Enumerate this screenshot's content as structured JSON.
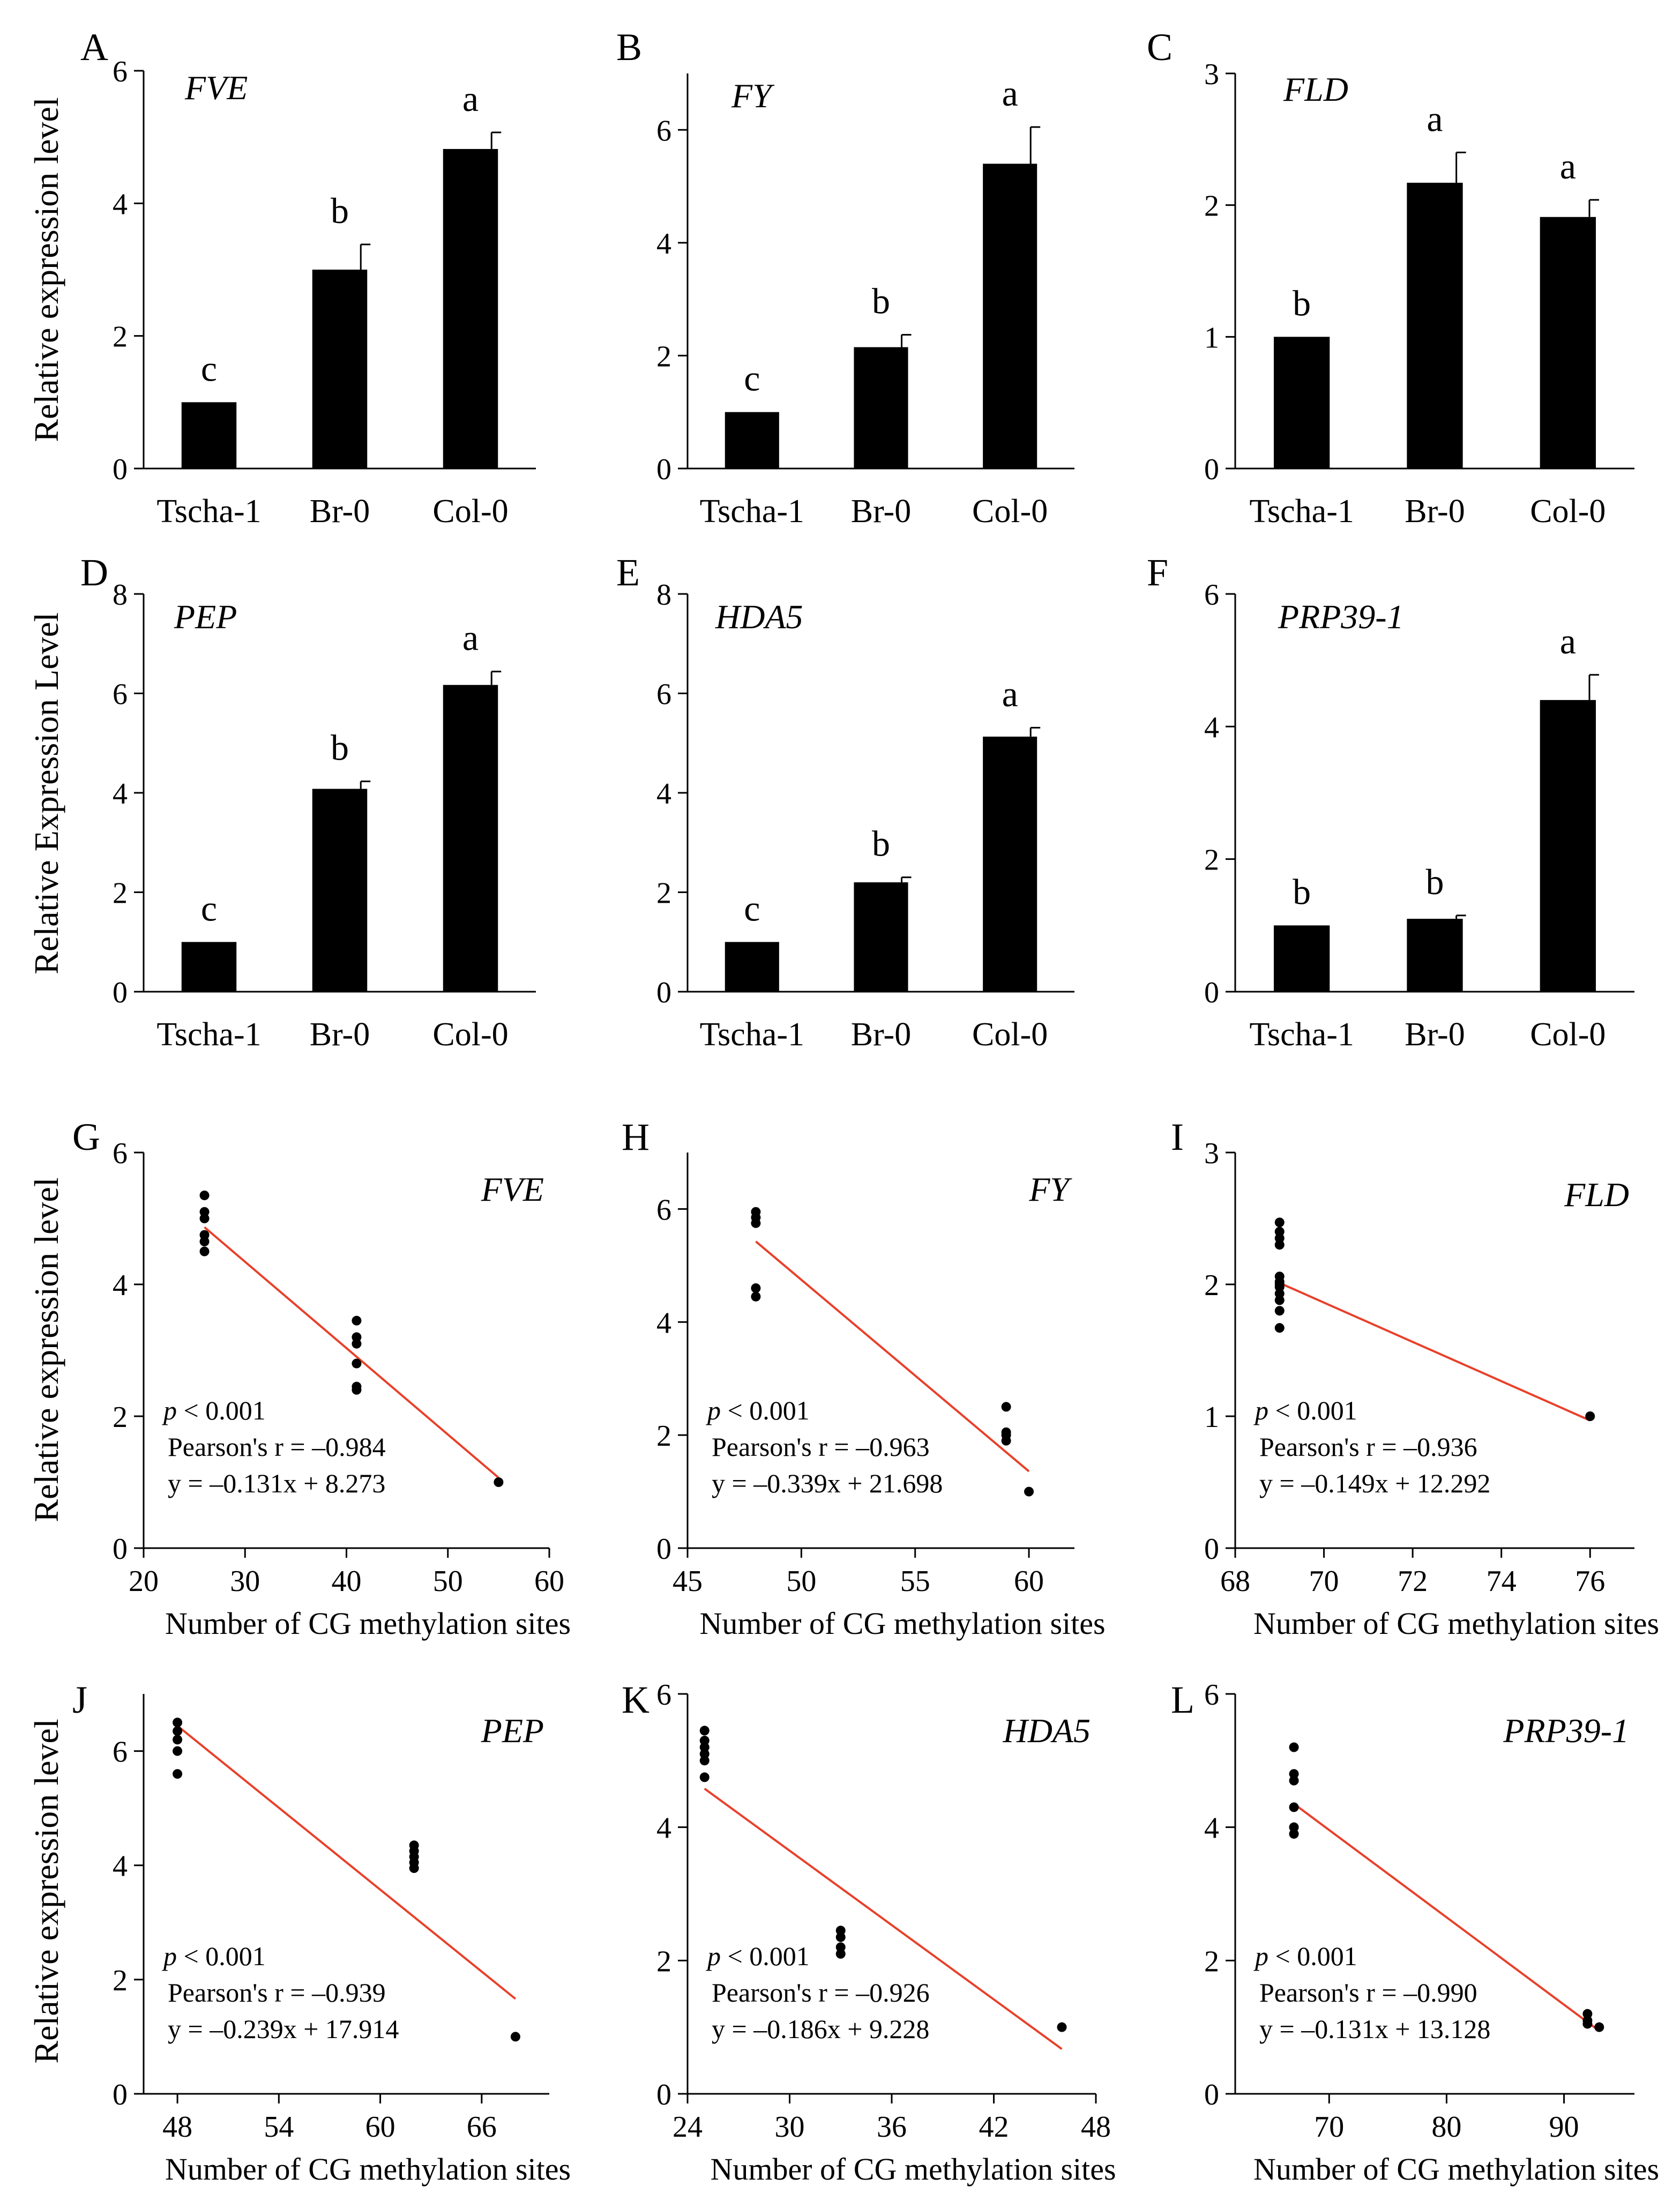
{
  "colors": {
    "bar": "#000000",
    "point": "#000000",
    "fit_line": "#e8402a",
    "axis": "#000000"
  },
  "x_categories": [
    "Tscha-1",
    "Br-0",
    "Col-0"
  ],
  "chart_data": [
    {
      "panel": "A",
      "type": "bar",
      "title": "FVE",
      "ylabel": "Relative expression level",
      "ylim": [
        0,
        6
      ],
      "yticks": [
        0,
        2,
        4,
        6
      ],
      "categories": [
        "Tscha-1",
        "Br-0",
        "Col-0"
      ],
      "values": [
        1.0,
        3.0,
        4.82
      ],
      "errors": [
        0,
        0.38,
        0.25
      ],
      "letters": [
        "c",
        "b",
        "a"
      ]
    },
    {
      "panel": "B",
      "type": "bar",
      "title": "FY",
      "ylabel": "",
      "ylim": [
        0,
        7
      ],
      "yticks": [
        0,
        2,
        4,
        6
      ],
      "categories": [
        "Tscha-1",
        "Br-0",
        "Col-0"
      ],
      "values": [
        1.0,
        2.15,
        5.4
      ],
      "errors": [
        0,
        0.22,
        0.65
      ],
      "letters": [
        "c",
        "b",
        "a"
      ]
    },
    {
      "panel": "C",
      "type": "bar",
      "title": "FLD",
      "ylabel": "",
      "ylim": [
        0,
        3
      ],
      "yticks": [
        0,
        1,
        2,
        3
      ],
      "categories": [
        "Tscha-1",
        "Br-0",
        "Col-0"
      ],
      "values": [
        1.0,
        2.17,
        1.91
      ],
      "errors": [
        0,
        0.23,
        0.13
      ],
      "letters": [
        "b",
        "a",
        "a"
      ]
    },
    {
      "panel": "D",
      "type": "bar",
      "title": "PEP",
      "ylabel": "Relative Expression Level",
      "ylim": [
        0,
        8
      ],
      "yticks": [
        0,
        2,
        4,
        6,
        8
      ],
      "categories": [
        "Tscha-1",
        "Br-0",
        "Col-0"
      ],
      "values": [
        1.0,
        4.08,
        6.17
      ],
      "errors": [
        0,
        0.15,
        0.27
      ],
      "letters": [
        "c",
        "b",
        "a"
      ]
    },
    {
      "panel": "E",
      "type": "bar",
      "title": "HDA5",
      "ylabel": "",
      "ylim": [
        0,
        8
      ],
      "yticks": [
        0,
        2,
        4,
        6,
        8
      ],
      "categories": [
        "Tscha-1",
        "Br-0",
        "Col-0"
      ],
      "values": [
        1.0,
        2.2,
        5.13
      ],
      "errors": [
        0,
        0.1,
        0.18
      ],
      "letters": [
        "c",
        "b",
        "a"
      ]
    },
    {
      "panel": "F",
      "type": "bar",
      "title": "PRP39-1",
      "ylabel": "",
      "ylim": [
        0,
        6
      ],
      "yticks": [
        0,
        2,
        4,
        6
      ],
      "categories": [
        "Tscha-1",
        "Br-0",
        "Col-0"
      ],
      "values": [
        1.0,
        1.1,
        4.4
      ],
      "errors": [
        0,
        0.05,
        0.38
      ],
      "letters": [
        "b",
        "b",
        "a"
      ]
    },
    {
      "panel": "G",
      "type": "scatter",
      "title": "FVE",
      "xlabel": "Number of CG methylation sites",
      "ylabel": "Relative expression level",
      "xlim": [
        20,
        60
      ],
      "xticks": [
        20,
        30,
        40,
        50,
        60
      ],
      "ylim": [
        0,
        6
      ],
      "yticks": [
        0,
        2,
        4,
        6
      ],
      "x": [
        26,
        26,
        26,
        26,
        26,
        26,
        41,
        41,
        41,
        41,
        41,
        41,
        55
      ],
      "y": [
        4.5,
        4.65,
        4.75,
        5.0,
        5.1,
        5.35,
        2.4,
        2.45,
        2.8,
        3.1,
        3.2,
        3.45,
        1.0
      ],
      "fit": {
        "slope": -0.131,
        "intercept": 8.273,
        "x_range": [
          26,
          55
        ]
      },
      "stats": {
        "p_symbol": "p",
        "p_rest": " < 0.001",
        "pearson": "Pearson's r = –0.984",
        "equation": "y = –0.131x + 8.273"
      }
    },
    {
      "panel": "H",
      "type": "scatter",
      "title": "FY",
      "xlabel": "Number of CG methylation sites",
      "ylabel": "",
      "xlim": [
        45,
        62
      ],
      "xticks": [
        45,
        50,
        55,
        60
      ],
      "ylim": [
        0,
        7
      ],
      "yticks": [
        0,
        2,
        4,
        6
      ],
      "x": [
        48,
        48,
        48,
        48,
        48,
        59,
        59,
        59,
        59,
        60
      ],
      "y": [
        4.45,
        4.6,
        5.75,
        5.85,
        5.95,
        1.9,
        2.0,
        2.05,
        2.5,
        1.0
      ],
      "fit": {
        "slope": -0.339,
        "intercept": 21.698,
        "x_range": [
          48,
          60
        ]
      },
      "stats": {
        "p_symbol": "p",
        "p_rest": " < 0.001",
        "pearson": "Pearson's r = –0.963",
        "equation": "y = –0.339x + 21.698"
      }
    },
    {
      "panel": "I",
      "type": "scatter",
      "title": "FLD",
      "xlabel": "Number of CG methylation sites",
      "ylabel": "",
      "xlim": [
        68,
        77
      ],
      "xticks": [
        68,
        70,
        72,
        74,
        76
      ],
      "ylim": [
        0,
        3
      ],
      "yticks": [
        0,
        1,
        2,
        3
      ],
      "x": [
        69,
        69,
        69,
        69,
        69,
        69,
        69,
        69,
        69,
        69,
        69,
        69,
        76
      ],
      "y": [
        1.67,
        1.8,
        1.88,
        1.93,
        1.98,
        2.02,
        2.06,
        2.3,
        2.35,
        2.4,
        2.47,
        2.0,
        1.0
      ],
      "fit": {
        "slope": -0.149,
        "intercept": 12.292,
        "x_range": [
          69,
          76
        ]
      },
      "stats": {
        "p_symbol": "p",
        "p_rest": " < 0.001",
        "pearson": "Pearson's r = –0.936",
        "equation": "y = –0.149x + 12.292"
      }
    },
    {
      "panel": "J",
      "type": "scatter",
      "title": "PEP",
      "xlabel": "Number of CG methylation sites",
      "ylabel": "Relative expression level",
      "xlim": [
        46,
        70
      ],
      "xticks": [
        48,
        54,
        60,
        66
      ],
      "ylim": [
        0,
        7
      ],
      "yticks": [
        0,
        2,
        4,
        6
      ],
      "x": [
        48,
        48,
        48,
        48,
        48,
        62,
        62,
        62,
        62,
        62,
        68
      ],
      "y": [
        5.6,
        6.0,
        6.2,
        6.35,
        6.5,
        3.95,
        4.05,
        4.15,
        4.25,
        4.35,
        1.0
      ],
      "fit": {
        "slope": -0.239,
        "intercept": 17.914,
        "x_range": [
          48,
          68
        ]
      },
      "stats": {
        "p_symbol": "p",
        "p_rest": " < 0.001",
        "pearson": "Pearson's r = –0.939",
        "equation": "y = –0.239x + 17.914"
      }
    },
    {
      "panel": "K",
      "type": "scatter",
      "title": "HDA5",
      "xlabel": "Number of CG methylation sites",
      "ylabel": "",
      "xlim": [
        24,
        48
      ],
      "xticks": [
        24,
        30,
        36,
        42,
        48
      ],
      "ylim": [
        0,
        6
      ],
      "yticks": [
        0,
        2,
        4,
        6
      ],
      "x": [
        25,
        25,
        25,
        25,
        25,
        25,
        33,
        33,
        33,
        33,
        46
      ],
      "y": [
        4.75,
        5.0,
        5.1,
        5.2,
        5.3,
        5.45,
        2.1,
        2.2,
        2.35,
        2.45,
        1.0
      ],
      "fit": {
        "slope": -0.186,
        "intercept": 9.228,
        "x_range": [
          25,
          46
        ]
      },
      "stats": {
        "p_symbol": "p",
        "p_rest": " < 0.001",
        "pearson": "Pearson's r = –0.926",
        "equation": "y = –0.186x + 9.228"
      }
    },
    {
      "panel": "L",
      "type": "scatter",
      "title": "PRP39-1",
      "xlabel": "Number of CG methylation sites",
      "ylabel": "",
      "xlim": [
        62,
        96
      ],
      "xticks": [
        70,
        80,
        90
      ],
      "ylim": [
        0,
        6
      ],
      "yticks": [
        0,
        2,
        4,
        6
      ],
      "x": [
        67,
        67,
        67,
        67,
        67,
        67,
        92,
        92,
        92,
        93
      ],
      "y": [
        3.9,
        4.0,
        4.3,
        4.7,
        4.8,
        5.2,
        1.05,
        1.1,
        1.2,
        1.0
      ],
      "fit": {
        "slope": -0.131,
        "intercept": 13.128,
        "x_range": [
          67,
          93
        ]
      },
      "stats": {
        "p_symbol": "p",
        "p_rest": " < 0.001",
        "pearson": "Pearson's r = –0.990",
        "equation": "y = –0.131x + 13.128"
      }
    }
  ]
}
